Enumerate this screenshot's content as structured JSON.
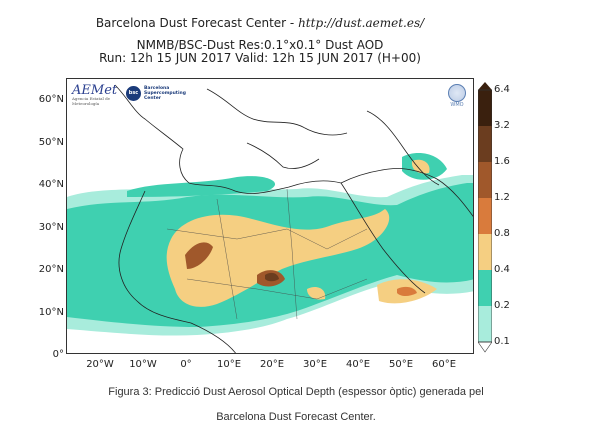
{
  "header": {
    "line1_prefix": "Barcelona Dust Forecast Center - ",
    "line1_url": "http://dust.aemet.es/",
    "line2": "NMMB/BSC-Dust   Res:0.1°x0.1°   Dust AOD",
    "line3": "Run: 12h 15 JUN 2017   Valid: 12h 15 JUN 2017 (H+00)"
  },
  "logos": {
    "aemet": "AEMet",
    "aemet_sub": "Agencia Estatal de Meteorología",
    "bsc": "bsc",
    "bsc_text": "Barcelona Supercomputing Center",
    "wmo": "WMO"
  },
  "axes": {
    "lat_labels": [
      "60°N",
      "50°N",
      "40°N",
      "30°N",
      "20°N",
      "10°N",
      "0°"
    ],
    "lon_labels": [
      "20°W",
      "10°W",
      "0°",
      "10°E",
      "20°E",
      "30°E",
      "40°E",
      "50°E",
      "60°E"
    ]
  },
  "colorbar": {
    "ticks": [
      "6.4",
      "3.2",
      "1.6",
      "1.2",
      "0.8",
      "0.4",
      "0.2",
      "0.1"
    ],
    "colors": [
      "#3a200e",
      "#6b3d1f",
      "#a0582b",
      "#d97b3c",
      "#f5cf82",
      "#3fd0b0",
      "#a8ecdc"
    ]
  },
  "caption": {
    "line1": "Figura 3: Predicció Dust Aerosol Optical Depth (espessor òptic) generada pel",
    "line2": "Barcelona Dust Forecast Center."
  }
}
